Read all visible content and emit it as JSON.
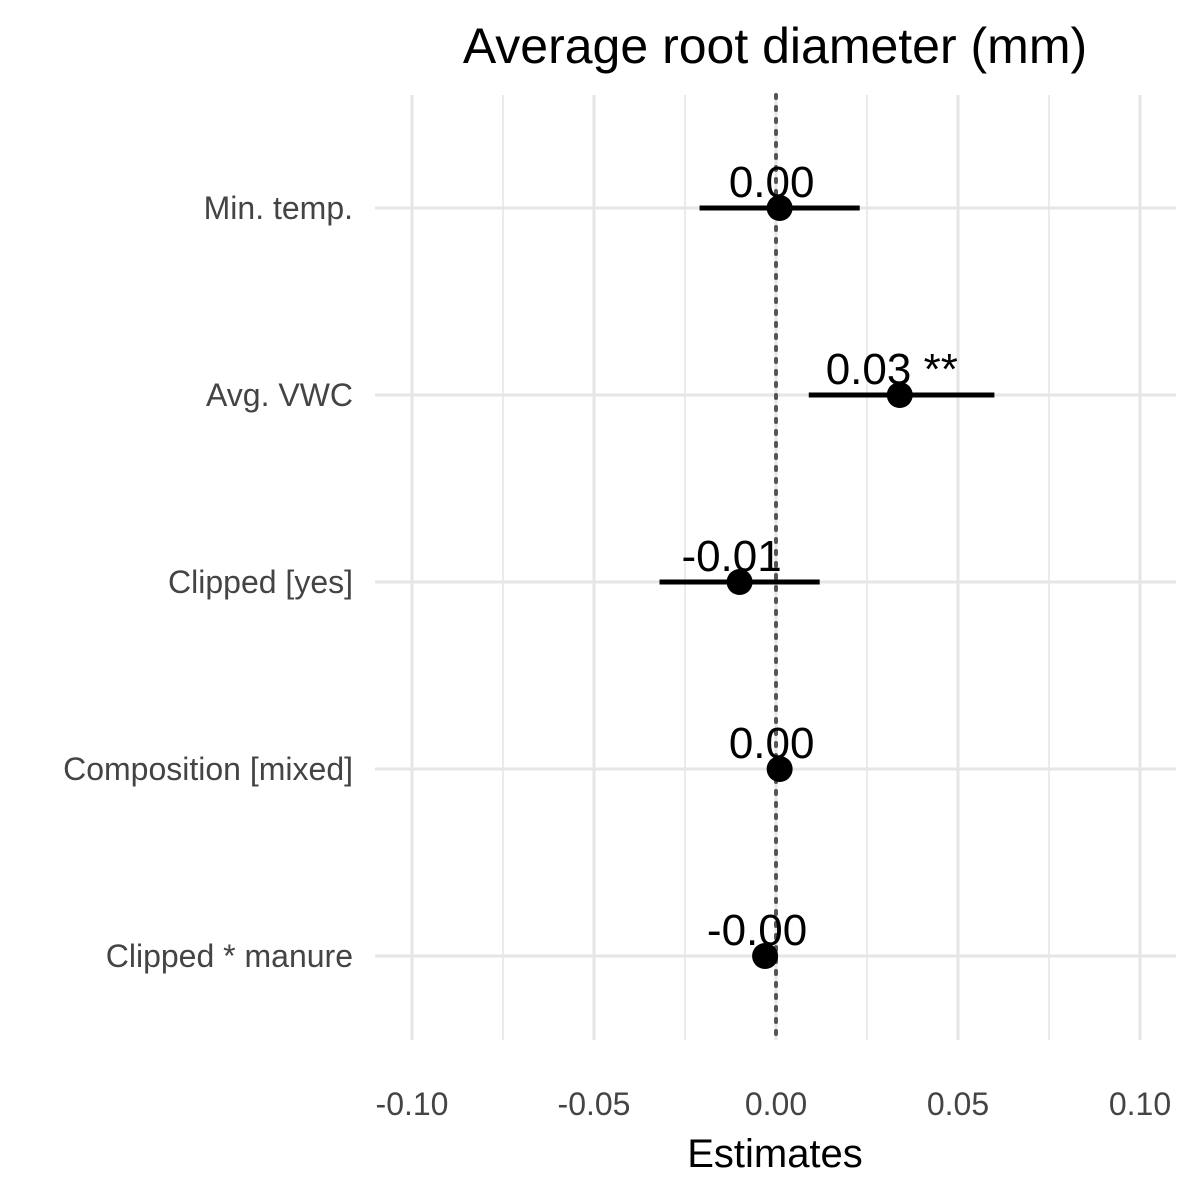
{
  "chart_data": {
    "type": "forest",
    "title": "Average root diameter (mm)",
    "xlabel": "Estimates",
    "ylabel": "",
    "xlim": [
      -0.1,
      0.1
    ],
    "x_ticks": [
      -0.1,
      -0.05,
      0.0,
      0.05,
      0.1
    ],
    "x_tick_labels": [
      "-0.10",
      "-0.05",
      "0.00",
      "0.05",
      "0.10"
    ],
    "reference_line": 0,
    "grid": true,
    "legend": "none",
    "colors": {
      "point": "#000000",
      "grid": "#e6e6e6",
      "reference": "#555555"
    },
    "terms": [
      {
        "label": "Min. temp.",
        "estimate": 0.001,
        "ci_low": -0.021,
        "ci_high": 0.023,
        "text": "0.00"
      },
      {
        "label": "Avg. VWC",
        "estimate": 0.034,
        "ci_low": 0.009,
        "ci_high": 0.06,
        "text": "0.03 **"
      },
      {
        "label": "Clipped [yes]",
        "estimate": -0.01,
        "ci_low": -0.032,
        "ci_high": 0.012,
        "text": "-0.01"
      },
      {
        "label": "Composition [mixed]",
        "estimate": 0.001,
        "ci_low": null,
        "ci_high": null,
        "text": "0.00"
      },
      {
        "label": "Clipped * manure",
        "estimate": -0.003,
        "ci_low": null,
        "ci_high": null,
        "text": "-0.00"
      }
    ]
  }
}
